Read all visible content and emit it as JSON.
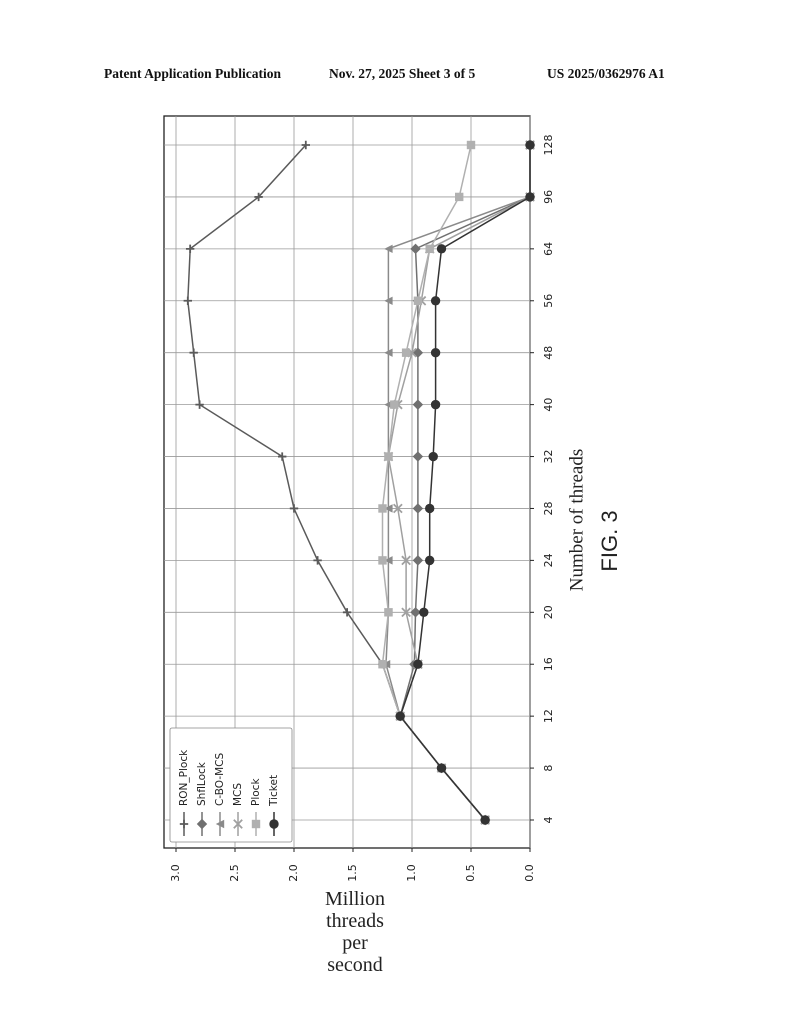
{
  "header": {
    "publication": "Patent Application Publication",
    "date_sheet": "Nov. 27, 2025  Sheet 3 of 5",
    "patent_number": "US 2025/0362976 A1"
  },
  "figure": {
    "label": "FIG. 3",
    "xlabel": "Number of threads",
    "ylabel_lines": [
      "Million",
      "threads",
      "per",
      "second"
    ]
  },
  "chart_data": {
    "type": "line",
    "title": "",
    "xlabel": "Number of threads",
    "ylabel": "Million threads per second",
    "categories": [
      "4",
      "8",
      "12",
      "16",
      "20",
      "24",
      "28",
      "32",
      "40",
      "48",
      "56",
      "64",
      "96",
      "128"
    ],
    "ylim": [
      0.0,
      3.0
    ],
    "yticks": [
      "0.0",
      "0.5",
      "1.0",
      "1.5",
      "2.0",
      "2.5",
      "3.0"
    ],
    "grid": true,
    "legend_position": "upper-left",
    "orientation": "rotated-90",
    "series": [
      {
        "name": "RON_Plock",
        "marker": "plus",
        "color": "#5a5a5a",
        "values": [
          0.38,
          0.75,
          1.1,
          1.25,
          1.55,
          1.8,
          2.0,
          2.1,
          2.8,
          2.85,
          2.9,
          2.88,
          2.3,
          1.9
        ]
      },
      {
        "name": "ShflLock",
        "marker": "diamond",
        "color": "#707070",
        "values": [
          0.38,
          0.75,
          1.1,
          0.98,
          0.97,
          0.95,
          0.95,
          0.95,
          0.95,
          0.95,
          0.95,
          0.97,
          0.0,
          0.0
        ]
      },
      {
        "name": "C-BO-MCS",
        "marker": "triangle",
        "color": "#8a8a8a",
        "values": [
          0.38,
          0.75,
          1.1,
          1.22,
          1.2,
          1.2,
          1.2,
          1.2,
          1.2,
          1.2,
          1.2,
          1.2,
          0.0,
          0.0
        ]
      },
      {
        "name": "MCS",
        "marker": "x",
        "color": "#a0a0a0",
        "values": [
          0.38,
          0.75,
          1.1,
          0.95,
          1.05,
          1.05,
          1.12,
          1.2,
          1.12,
          1.0,
          0.92,
          0.85,
          0.0,
          0.0
        ]
      },
      {
        "name": "Plock",
        "marker": "square",
        "color": "#b0b0b0",
        "values": [
          0.38,
          0.75,
          1.1,
          1.25,
          1.2,
          1.25,
          1.25,
          1.2,
          1.15,
          1.05,
          0.95,
          0.85,
          0.6,
          0.5
        ]
      },
      {
        "name": "Ticket",
        "marker": "circle",
        "color": "#333333",
        "values": [
          0.38,
          0.75,
          1.1,
          0.95,
          0.9,
          0.85,
          0.85,
          0.82,
          0.8,
          0.8,
          0.8,
          0.75,
          0.0,
          0.0
        ]
      }
    ]
  }
}
